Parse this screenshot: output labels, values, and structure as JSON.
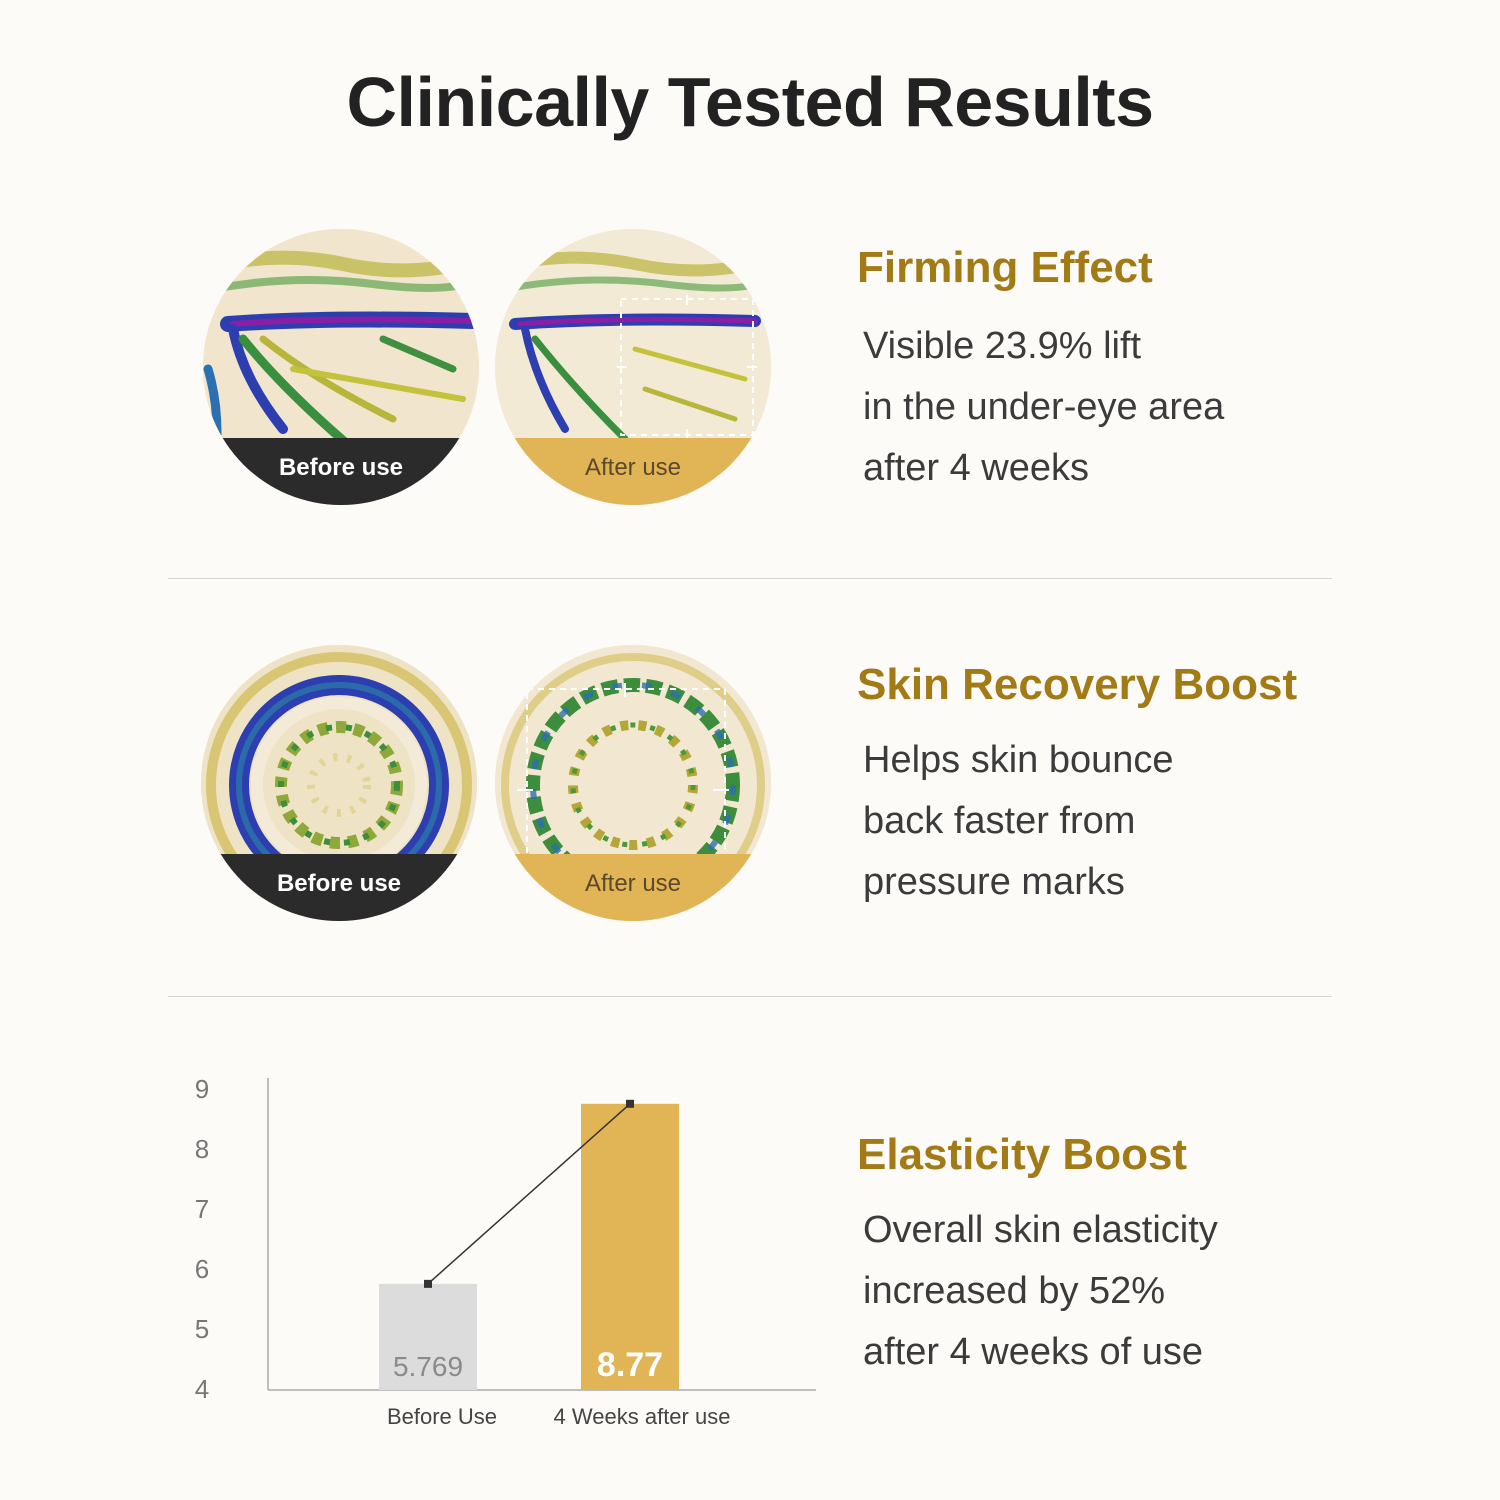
{
  "title": "Clinically Tested Results",
  "sections": [
    {
      "heading": "Firming Effect",
      "lines": [
        "Visible 23.9% lift",
        "in the under-eye area",
        "after 4 weeks"
      ],
      "before_label": "Before use",
      "after_label": "After use"
    },
    {
      "heading": "Skin Recovery Boost",
      "lines": [
        "Helps skin bounce",
        "back faster from",
        "pressure marks"
      ],
      "before_label": "Before use",
      "after_label": "After use"
    },
    {
      "heading": "Elasticity Boost",
      "lines": [
        "Overall skin elasticity",
        "increased by 52%",
        "after 4 weeks of use"
      ]
    }
  ],
  "colors": {
    "accent": "#a27a16",
    "gold_bar": "#e1b455",
    "gray_bar": "#dcdcdc",
    "dark_caption": "#2b2b2b"
  },
  "chart_data": {
    "type": "bar",
    "categories": [
      "Before Use",
      "4 Weeks after use"
    ],
    "values": [
      5.769,
      8.77
    ],
    "value_labels": [
      "5.769",
      "8.77"
    ],
    "ylim": [
      4,
      9
    ],
    "yticks": [
      "4",
      "5",
      "6",
      "7",
      "8",
      "9"
    ],
    "bar_colors": [
      "#dcdcdc",
      "#e1b455"
    ],
    "connector_line": true,
    "grid": false,
    "title": "",
    "xlabel": "",
    "ylabel": ""
  }
}
